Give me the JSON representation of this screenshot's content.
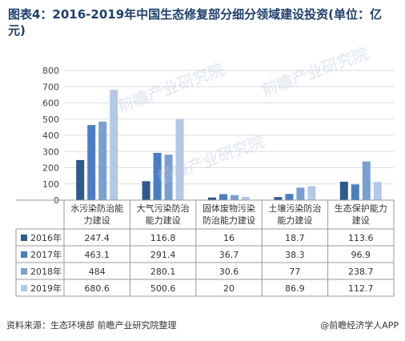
{
  "title": "图表4：2016-2019年中国生态修复部分细分领域建设投资(单位：亿元)",
  "source_label": "资料来源：生态环境部 前瞻产业研究院整理",
  "brand": "@前瞻经济学人APP",
  "watermark": "前瞻产业研究院",
  "colors": {
    "2016年": "#2e5a8e",
    "2017年": "#4a7dc4",
    "2018年": "#7a9fd3",
    "2019年": "#b4c8e8",
    "axis": "#999999",
    "grid": "#dddddd"
  },
  "chart_data": {
    "type": "bar",
    "title": "图表4：2016-2019年中国生态修复部分细分领域建设投资(单位：亿元)",
    "categories": [
      "水污染防治能力建设",
      "大气污染防治能力建设",
      "固体废物污染防治能力建设",
      "土壤污染防治能力建设",
      "生态保护能力建设"
    ],
    "category_lines": [
      [
        "水污染防治能",
        "力建设"
      ],
      [
        "大气污染防治",
        "能力建设"
      ],
      [
        "固体废物污染",
        "防治能力建设"
      ],
      [
        "土壤污染防治",
        "能力建设"
      ],
      [
        "生态保护能力",
        "建设"
      ]
    ],
    "series": [
      {
        "name": "2016年",
        "values": [
          247.4,
          116.8,
          16,
          18.7,
          113.6
        ]
      },
      {
        "name": "2017年",
        "values": [
          463.1,
          291.4,
          36.7,
          38.3,
          96.9
        ]
      },
      {
        "name": "2018年",
        "values": [
          484,
          280.1,
          30.6,
          77,
          238.7
        ]
      },
      {
        "name": "2019年",
        "values": [
          680.6,
          500.6,
          20,
          86.9,
          112.7
        ]
      }
    ],
    "ylim": [
      0,
      800
    ],
    "yticks": [
      0,
      100,
      200,
      300,
      400,
      500,
      600,
      700,
      800
    ],
    "table_values": [
      [
        "247.4",
        "116.8",
        "16",
        "18.7",
        "113.6"
      ],
      [
        "463.1",
        "291.4",
        "36.7",
        "38.3",
        "96.9"
      ],
      [
        "484",
        "280.1",
        "30.6",
        "77",
        "238.7"
      ],
      [
        "680.6",
        "500.6",
        "20",
        "86.9",
        "112.7"
      ]
    ],
    "grid": true,
    "legend": "data-table-left"
  }
}
